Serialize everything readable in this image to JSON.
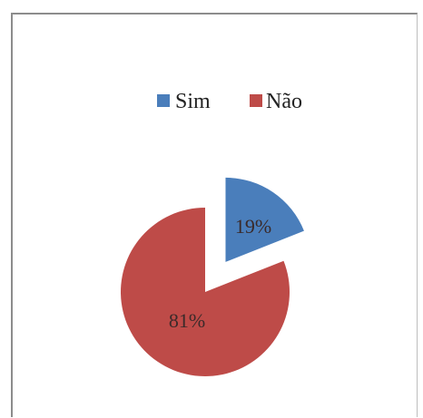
{
  "chart_data": {
    "type": "pie",
    "categories": [
      "Sim",
      "Não"
    ],
    "values": [
      19,
      81
    ],
    "labels": [
      "19%",
      "81%"
    ],
    "colors": [
      "#4a7ebb",
      "#be4b48"
    ],
    "exploded": true,
    "legend": "top",
    "title": ""
  }
}
